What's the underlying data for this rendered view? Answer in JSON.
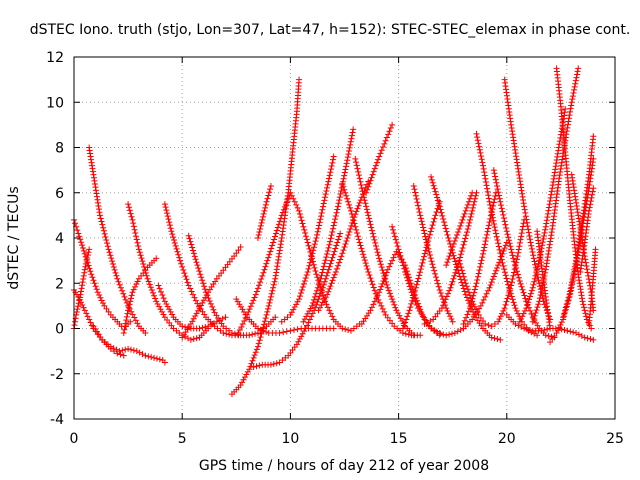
{
  "chart_data": {
    "type": "scatter",
    "title": "dSTEC Iono. truth (stjo, Lon=307, Lat=47, h=152): STEC-STEC_elemax in phase cont.",
    "xlabel": "GPS time / hours of day 212 of year 2008",
    "ylabel": "dSTEC  / TECUs",
    "xlim": [
      0,
      25
    ],
    "ylim": [
      -4,
      12
    ],
    "xticks": [
      0,
      5,
      10,
      15,
      20,
      25
    ],
    "yticks": [
      -4,
      -2,
      0,
      2,
      4,
      6,
      8,
      10,
      12
    ],
    "grid": true,
    "marker": "plus",
    "color": "#ff0000",
    "series": [
      {
        "x": [
          0.0,
          0.2,
          0.5,
          0.8,
          1.1,
          1.4,
          1.7,
          2.0,
          2.2,
          2.4,
          2.6
        ],
        "y": [
          4.8,
          4.2,
          3.3,
          2.4,
          1.6,
          1.0,
          0.6,
          0.3,
          0.1,
          0.1,
          0.3
        ]
      },
      {
        "x": [
          0.0,
          0.2,
          0.5,
          0.9,
          1.3,
          1.7,
          2.0,
          2.3
        ],
        "y": [
          1.7,
          1.4,
          0.8,
          0.0,
          -0.5,
          -0.9,
          -1.1,
          -1.2
        ]
      },
      {
        "x": [
          0.0,
          0.1,
          0.3,
          0.5,
          0.7
        ],
        "y": [
          0.0,
          0.6,
          1.5,
          2.6,
          3.5
        ]
      },
      {
        "x": [
          0.7,
          0.9,
          1.2,
          1.6,
          2.0,
          2.5,
          3.0,
          3.3
        ],
        "y": [
          8.0,
          6.8,
          5.0,
          3.5,
          2.2,
          1.0,
          0.1,
          -0.2
        ]
      },
      {
        "x": [
          0.9,
          1.3,
          1.7,
          2.1,
          2.5,
          2.9,
          3.3,
          3.7,
          4.1,
          4.2
        ],
        "y": [
          0.1,
          -0.5,
          -0.8,
          -1.0,
          -0.9,
          -1.0,
          -1.2,
          -1.3,
          -1.4,
          -1.5
        ]
      },
      {
        "x": [
          2.3,
          2.5,
          2.7,
          3.0,
          3.4,
          3.8
        ],
        "y": [
          -0.2,
          0.8,
          1.6,
          2.2,
          2.7,
          3.1
        ]
      },
      {
        "x": [
          2.5,
          2.7,
          3.0,
          3.4,
          3.8,
          4.2,
          4.6,
          5.0,
          5.4,
          5.8,
          6.2
        ],
        "y": [
          5.5,
          4.8,
          3.5,
          2.2,
          1.2,
          0.5,
          0.0,
          -0.3,
          -0.5,
          -0.4,
          0.0
        ]
      },
      {
        "x": [
          4.2,
          4.5,
          4.9,
          5.3,
          5.7,
          6.1,
          6.5,
          6.9,
          7.3,
          7.6
        ],
        "y": [
          5.5,
          4.3,
          3.0,
          1.9,
          1.1,
          0.5,
          0.1,
          -0.2,
          -0.3,
          -0.3
        ]
      },
      {
        "x": [
          3.9,
          4.2,
          4.6,
          5.0,
          5.4,
          5.8,
          6.2,
          6.6,
          7.0
        ],
        "y": [
          1.9,
          1.2,
          0.5,
          0.1,
          0.0,
          0.0,
          0.1,
          0.3,
          0.5
        ]
      },
      {
        "x": [
          5.0,
          5.4,
          5.8,
          6.2,
          6.6,
          7.0,
          7.4,
          7.7
        ],
        "y": [
          -0.4,
          0.2,
          0.9,
          1.6,
          2.2,
          2.7,
          3.2,
          3.6
        ]
      },
      {
        "x": [
          5.3,
          5.7,
          6.1,
          6.5,
          6.9,
          7.3,
          7.7,
          8.1,
          8.5,
          8.9,
          9.3
        ],
        "y": [
          4.1,
          2.8,
          1.6,
          0.7,
          0.1,
          -0.2,
          -0.3,
          -0.3,
          -0.2,
          0.1,
          0.5
        ]
      },
      {
        "x": [
          7.3,
          7.7,
          8.1,
          8.5,
          8.9,
          9.3,
          9.6,
          9.9,
          10.1,
          10.3,
          10.4
        ],
        "y": [
          -2.9,
          -2.5,
          -1.8,
          -0.8,
          0.6,
          2.2,
          4.0,
          6.0,
          7.8,
          9.6,
          11.0
        ]
      },
      {
        "x": [
          8.3,
          8.7,
          9.1,
          9.5,
          9.9,
          10.3,
          10.7,
          11.1,
          11.5,
          11.9,
          12.3
        ],
        "y": [
          -1.7,
          -1.6,
          -1.6,
          -1.5,
          -1.2,
          -0.7,
          0.0,
          0.8,
          1.8,
          3.0,
          4.2
        ]
      },
      {
        "x": [
          7.5,
          8.0,
          8.5,
          9.0,
          9.5,
          10.0,
          10.5,
          11.0,
          11.5,
          12.0
        ],
        "y": [
          1.3,
          0.5,
          0.0,
          -0.2,
          -0.2,
          -0.1,
          0.0,
          0.0,
          0.0,
          0.0
        ]
      },
      {
        "x": [
          7.6,
          8.0,
          8.4,
          8.8,
          9.2,
          9.6,
          10.0,
          10.4,
          10.8,
          11.2,
          11.6,
          12.0,
          12.4,
          12.8,
          13.2
        ],
        "y": [
          -0.2,
          0.6,
          1.5,
          2.6,
          3.8,
          5.0,
          6.0,
          5.2,
          3.8,
          2.4,
          1.2,
          0.4,
          0.0,
          -0.1,
          0.2
        ]
      },
      {
        "x": [
          8.5,
          8.7,
          8.9,
          9.1
        ],
        "y": [
          4.0,
          4.8,
          5.6,
          6.3
        ]
      },
      {
        "x": [
          9.6,
          10.0,
          10.4,
          10.8,
          11.2,
          11.6,
          12.0
        ],
        "y": [
          0.3,
          0.6,
          1.3,
          2.5,
          4.0,
          5.8,
          7.6
        ]
      },
      {
        "x": [
          10.6,
          11.0,
          11.4,
          11.8,
          12.2,
          12.6,
          12.9
        ],
        "y": [
          0.3,
          1.0,
          2.2,
          3.7,
          5.4,
          7.3,
          8.8
        ]
      },
      {
        "x": [
          11.3,
          11.7,
          12.1,
          12.5,
          12.9,
          13.3,
          13.6
        ],
        "y": [
          0.8,
          1.5,
          2.5,
          3.6,
          4.8,
          5.8,
          6.5
        ]
      },
      {
        "x": [
          12.4,
          12.8,
          13.2,
          13.6,
          14.0,
          14.4,
          14.8,
          15.2,
          15.6,
          16.0
        ],
        "y": [
          6.4,
          5.2,
          3.8,
          2.5,
          1.4,
          0.6,
          0.1,
          -0.2,
          -0.3,
          -0.3
        ]
      },
      {
        "x": [
          13.0,
          13.3,
          13.7,
          14.1,
          14.5,
          14.9,
          15.3,
          15.7
        ],
        "y": [
          7.5,
          6.2,
          4.6,
          3.1,
          1.8,
          0.8,
          0.1,
          -0.3
        ]
      },
      {
        "x": [
          13.3,
          13.7,
          14.1,
          14.5,
          14.9,
          15.3,
          15.7,
          16.1,
          16.5,
          16.9
        ],
        "y": [
          0.2,
          0.8,
          1.6,
          2.6,
          3.4,
          2.8,
          1.6,
          0.6,
          0.0,
          -0.3
        ]
      },
      {
        "x": [
          13.5,
          13.8,
          14.1,
          14.4,
          14.7
        ],
        "y": [
          6.0,
          6.8,
          7.6,
          8.3,
          9.0
        ]
      },
      {
        "x": [
          14.7,
          15.0,
          15.3,
          15.6,
          15.9,
          16.2,
          16.5,
          16.9
        ],
        "y": [
          4.5,
          3.5,
          2.5,
          1.6,
          0.9,
          0.4,
          0.0,
          -0.2
        ]
      },
      {
        "x": [
          15.2,
          15.5,
          15.8,
          16.1,
          16.4,
          16.7,
          16.9
        ],
        "y": [
          0.0,
          0.8,
          1.8,
          2.9,
          4.0,
          5.0,
          5.6
        ]
      },
      {
        "x": [
          15.7,
          16.0,
          16.3,
          16.6,
          16.9,
          17.2,
          17.5
        ],
        "y": [
          6.3,
          5.0,
          3.8,
          2.7,
          1.7,
          0.9,
          0.3
        ]
      },
      {
        "x": [
          16.2,
          16.6,
          17.0,
          17.4,
          17.8,
          18.2,
          18.6
        ],
        "y": [
          0.2,
          0.4,
          0.9,
          1.8,
          3.0,
          4.4,
          6.0
        ]
      },
      {
        "x": [
          16.5,
          16.9,
          17.3,
          17.7,
          18.1,
          18.5,
          18.9,
          19.3,
          19.7
        ],
        "y": [
          6.7,
          5.4,
          4.0,
          2.7,
          1.5,
          0.6,
          0.0,
          -0.4,
          -0.5
        ]
      },
      {
        "x": [
          16.4,
          16.8,
          17.2,
          17.6,
          18.0,
          18.4,
          18.8,
          19.2,
          19.6,
          20.0
        ],
        "y": [
          0.1,
          -0.2,
          -0.3,
          -0.2,
          0.0,
          0.4,
          1.0,
          1.8,
          2.8,
          3.8
        ]
      },
      {
        "x": [
          17.2,
          17.5,
          17.8,
          18.1,
          18.4
        ],
        "y": [
          2.8,
          3.6,
          4.4,
          5.2,
          6.0
        ]
      },
      {
        "x": [
          17.8,
          18.1,
          18.4,
          18.7,
          19.0,
          19.3,
          19.6,
          19.9,
          20.2,
          20.5,
          20.8
        ],
        "y": [
          3.0,
          2.0,
          1.2,
          0.6,
          0.2,
          0.1,
          0.3,
          0.9,
          1.9,
          3.2,
          4.8
        ]
      },
      {
        "x": [
          18.0,
          18.3,
          18.6,
          18.9,
          19.2,
          19.5
        ],
        "y": [
          0.2,
          0.9,
          2.0,
          3.3,
          4.7,
          6.0
        ]
      },
      {
        "x": [
          18.6,
          18.9,
          19.2,
          19.5,
          19.8,
          20.1,
          20.4,
          20.7,
          21.0,
          21.4
        ],
        "y": [
          8.6,
          7.2,
          5.6,
          4.2,
          2.9,
          1.8,
          0.9,
          0.3,
          -0.1,
          -0.3
        ]
      },
      {
        "x": [
          19.4,
          19.7,
          20.0,
          20.3,
          20.6,
          20.9,
          21.2,
          21.5,
          21.8,
          22.2
        ],
        "y": [
          7.0,
          5.6,
          4.3,
          3.1,
          2.1,
          1.2,
          0.5,
          0.0,
          -0.3,
          -0.4
        ]
      },
      {
        "x": [
          19.9,
          20.2,
          20.5,
          20.8,
          21.1,
          21.4,
          21.7,
          22.0
        ],
        "y": [
          11.0,
          9.0,
          7.2,
          5.4,
          3.8,
          2.4,
          1.2,
          0.4
        ]
      },
      {
        "x": [
          20.0,
          20.4,
          20.8,
          21.2,
          21.6,
          22.0,
          22.4,
          22.8,
          23.2,
          23.6,
          24.0
        ],
        "y": [
          0.6,
          0.2,
          0.0,
          -0.1,
          -0.1,
          0.0,
          0.0,
          -0.1,
          -0.2,
          -0.4,
          -0.5
        ]
      },
      {
        "x": [
          20.6,
          20.9,
          21.2,
          21.5,
          21.8,
          22.1,
          22.4,
          22.7
        ],
        "y": [
          0.3,
          0.9,
          1.8,
          3.0,
          4.5,
          6.2,
          8.0,
          9.7
        ]
      },
      {
        "x": [
          21.2,
          21.5,
          21.8,
          22.1,
          22.4,
          22.7,
          23.0,
          23.3
        ],
        "y": [
          0.3,
          1.2,
          2.6,
          4.4,
          6.5,
          8.3,
          10.0,
          11.5
        ]
      },
      {
        "x": [
          21.4,
          21.6,
          21.8,
          22.0
        ],
        "y": [
          4.3,
          2.8,
          1.4,
          0.0
        ]
      },
      {
        "x": [
          22.3,
          22.5,
          22.7,
          22.9,
          23.1,
          23.3,
          23.5,
          23.7,
          23.9
        ],
        "y": [
          11.5,
          9.8,
          7.8,
          5.8,
          4.0,
          2.4,
          1.2,
          0.4,
          0.0
        ]
      },
      {
        "x": [
          22.0,
          22.3,
          22.6,
          22.9,
          23.2,
          23.5,
          23.8,
          24.0
        ],
        "y": [
          -0.6,
          -0.2,
          0.4,
          1.4,
          2.8,
          4.5,
          6.2,
          7.5
        ]
      },
      {
        "x": [
          22.6,
          22.9,
          23.2,
          23.5,
          23.8,
          24.0
        ],
        "y": [
          0.5,
          1.5,
          3.0,
          4.8,
          6.8,
          8.5
        ]
      },
      {
        "x": [
          23.0,
          23.3,
          23.6,
          23.9,
          24.0
        ],
        "y": [
          6.8,
          5.0,
          3.2,
          1.6,
          0.8
        ]
      },
      {
        "x": [
          23.4,
          23.6,
          23.8,
          24.0
        ],
        "y": [
          2.5,
          3.8,
          5.2,
          6.2
        ]
      },
      {
        "x": [
          23.8,
          23.9,
          24.0,
          24.1
        ],
        "y": [
          0.2,
          1.2,
          2.3,
          3.5
        ]
      }
    ]
  }
}
